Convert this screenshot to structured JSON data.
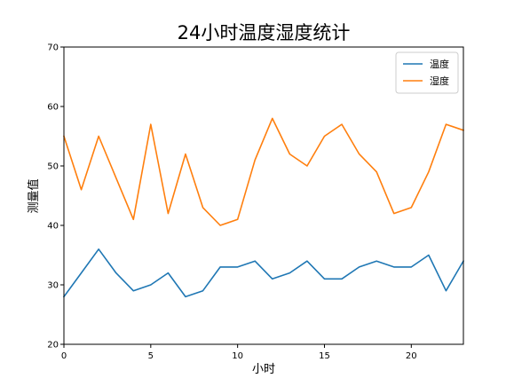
{
  "chart_data": {
    "type": "line",
    "title": "24小时温度湿度统计",
    "xlabel": "小时",
    "ylabel": "测量值",
    "x": [
      0,
      1,
      2,
      3,
      4,
      5,
      6,
      7,
      8,
      9,
      10,
      11,
      12,
      13,
      14,
      15,
      16,
      17,
      18,
      19,
      20,
      21,
      22,
      23
    ],
    "xlim": [
      0,
      23
    ],
    "ylim": [
      20,
      70
    ],
    "xticks": [
      0,
      5,
      10,
      15,
      20
    ],
    "yticks": [
      20,
      30,
      40,
      50,
      60,
      70
    ],
    "grid": false,
    "legend_position": "top-right",
    "series": [
      {
        "name": "温度",
        "color": "#1f77b4",
        "values": [
          28,
          32,
          36,
          32,
          29,
          30,
          32,
          28,
          29,
          33,
          33,
          34,
          31,
          32,
          34,
          31,
          31,
          33,
          34,
          33,
          33,
          35,
          29,
          34
        ]
      },
      {
        "name": "湿度",
        "color": "#ff7f0e",
        "values": [
          55,
          46,
          55,
          48,
          41,
          57,
          42,
          52,
          43,
          40,
          41,
          51,
          58,
          52,
          50,
          55,
          57,
          52,
          49,
          42,
          43,
          49,
          57,
          56
        ]
      }
    ]
  }
}
